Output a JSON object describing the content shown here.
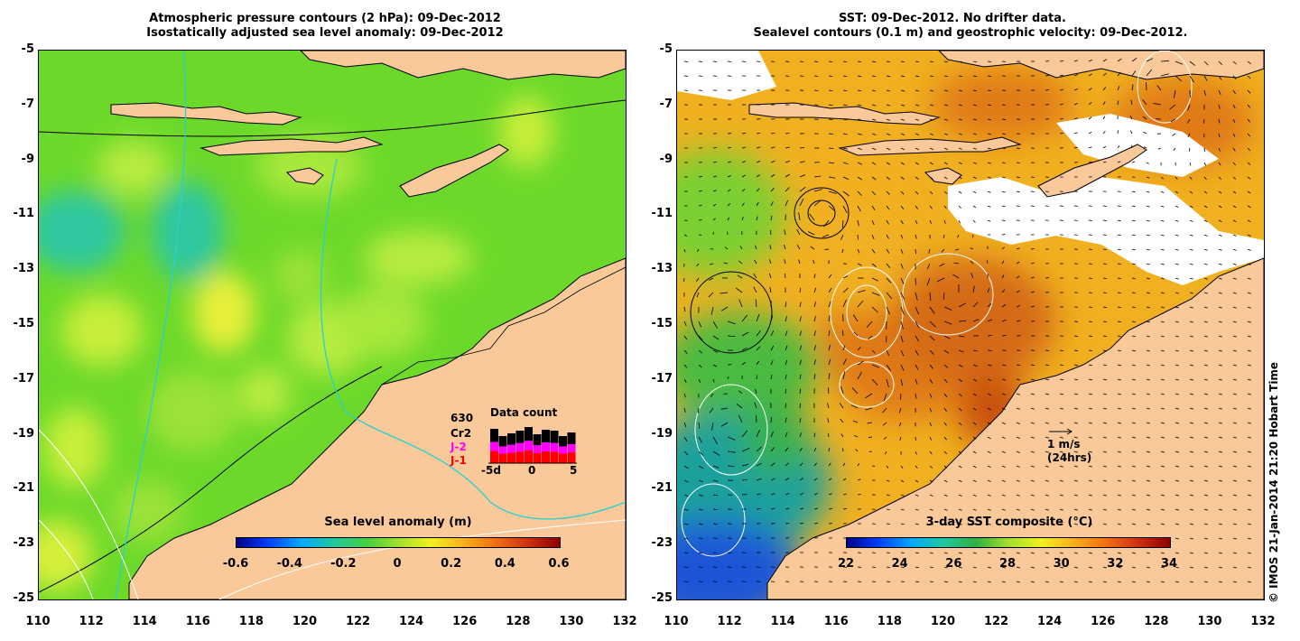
{
  "left": {
    "title_line1": "Atmospheric pressure contours (2 hPa): 09-Dec-2012",
    "title_line2": "Isostatically adjusted sea level anomaly: 09-Dec-2012",
    "colorbar_title": "Sea level anomaly (m)",
    "colorbar_ticks": [
      "-0.6",
      "-0.4",
      "-0.2",
      "0",
      "0.2",
      "0.4",
      "0.6"
    ],
    "data_count": {
      "title": "Data count",
      "total": "630",
      "labels": [
        "Cr2",
        "J-2",
        "J-1"
      ],
      "label_colors": [
        "#000000",
        "#ff00ff",
        "#ff0000"
      ],
      "x_ticks": [
        "-5d",
        "0",
        "5"
      ]
    }
  },
  "right": {
    "title_line1": "SST: 09-Dec-2012. No drifter data.",
    "title_line2": "Sealevel contours (0.1 m) and geostrophic velocity: 09-Dec-2012.",
    "colorbar_title": "3-day SST composite (°C)",
    "colorbar_ticks": [
      "22",
      "24",
      "26",
      "28",
      "30",
      "32",
      "34"
    ],
    "vector_legend": {
      "line1": "1 m/s",
      "line2": "(24hrs)"
    }
  },
  "axes": {
    "y_ticks": [
      "-5",
      "-7",
      "-9",
      "-11",
      "-13",
      "-15",
      "-17",
      "-19",
      "-21",
      "-23",
      "-25"
    ],
    "x_ticks": [
      "110",
      "112",
      "114",
      "116",
      "118",
      "120",
      "122",
      "124",
      "126",
      "128",
      "130",
      "132"
    ]
  },
  "credit": "© IMOS 21-Jan-2014 21:20 Hobart Time",
  "colors": {
    "land": "#f9c99a",
    "ssh_base": "#66dd22",
    "sst_warm": "#e08a18",
    "sst_cool": "#22aa44"
  }
}
